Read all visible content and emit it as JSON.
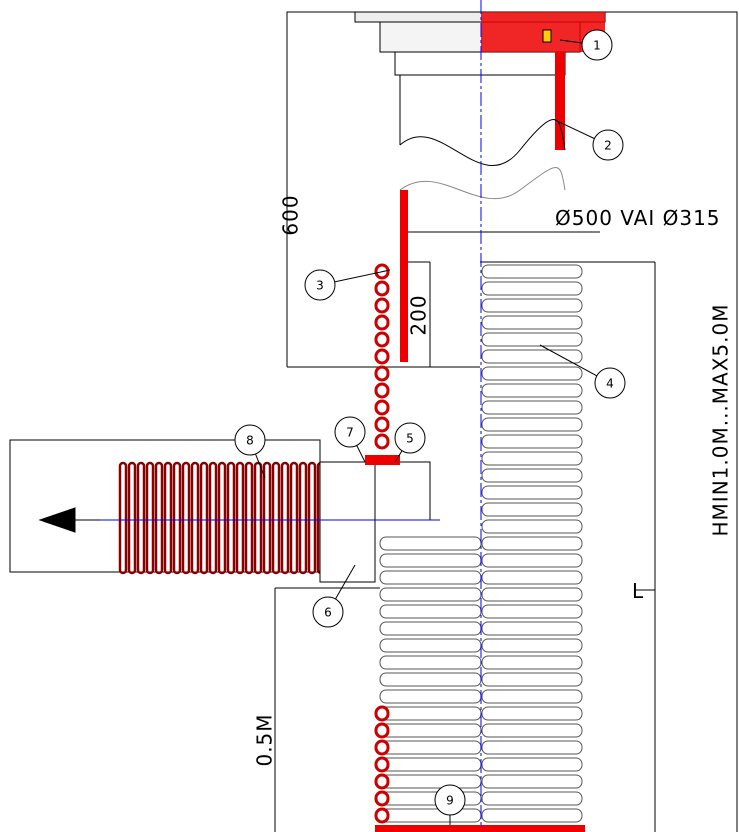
{
  "labels": {
    "height_top": "600",
    "insert": "200",
    "diameter": "Ø500 VAI Ø315",
    "height_range": "HMIN1.0M...MAX5.0M",
    "bottom": "0.5M",
    "length": "L"
  },
  "callouts": [
    "1",
    "2",
    "3",
    "4",
    "5",
    "6",
    "7",
    "8",
    "9"
  ]
}
